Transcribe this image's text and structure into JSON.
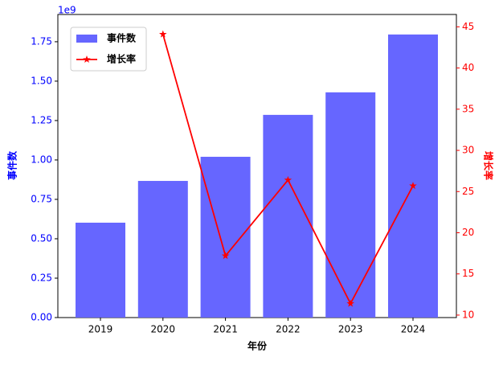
{
  "chart_data": {
    "type": "bar_line",
    "x_label": "年份",
    "y_label": "事件数",
    "y2_label": "增长率",
    "y_offset_label": "1e9",
    "categories": [
      "2019",
      "2020",
      "2021",
      "2022",
      "2023",
      "2024"
    ],
    "series": [
      {
        "name": "事件数",
        "type": "bar",
        "color": "#6666ff",
        "values": [
          602000000,
          867000000,
          1020000000,
          1286000000,
          1429000000,
          1796000000
        ]
      },
      {
        "name": "增长率",
        "type": "line",
        "axis": "y2",
        "color": "#ff0000",
        "values": [
          null,
          44.1,
          17.2,
          26.4,
          11.4,
          25.7
        ]
      }
    ],
    "ylim": [
      0,
      1923000000
    ],
    "yticks": [
      {
        "value": 0,
        "label": "0.00"
      },
      {
        "value": 250000000,
        "label": "0.25"
      },
      {
        "value": 500000000,
        "label": "0.50"
      },
      {
        "value": 750000000,
        "label": "0.75"
      },
      {
        "value": 1000000000,
        "label": "1.00"
      },
      {
        "value": 1250000000,
        "label": "1.25"
      },
      {
        "value": 1500000000,
        "label": "1.50"
      },
      {
        "value": 1750000000,
        "label": "1.75"
      }
    ],
    "y2lim": [
      9.7,
      46.5
    ],
    "y2ticks": [
      10,
      15,
      20,
      25,
      30,
      35,
      40,
      45
    ],
    "y_color": "#0000ff",
    "y2_color": "#ff0000",
    "legend": "upper left"
  }
}
